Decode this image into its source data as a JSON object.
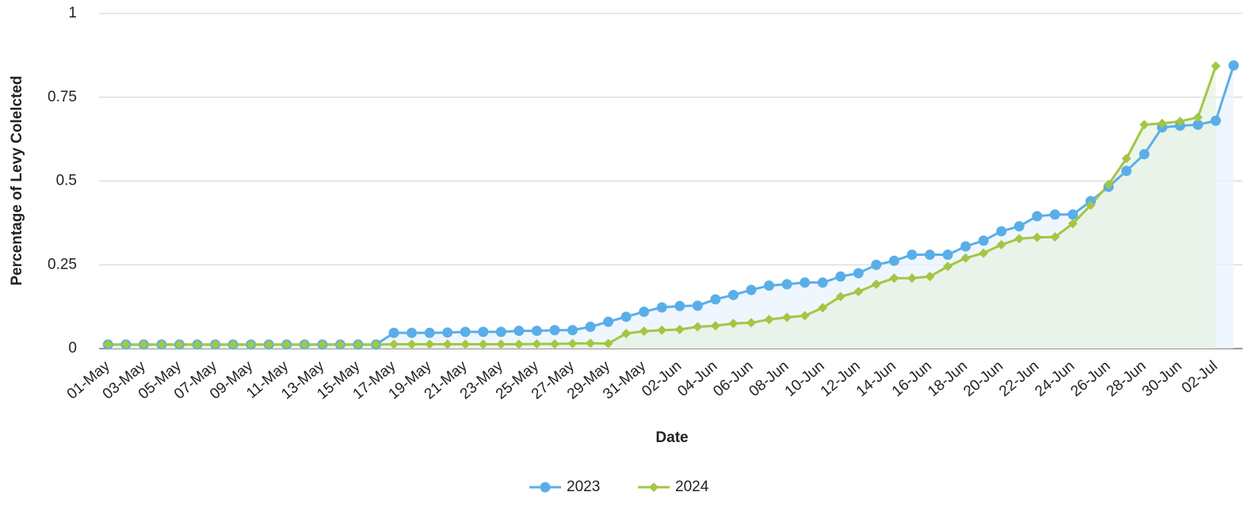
{
  "chart_data": {
    "type": "line",
    "y_label": "Percentage of Levy Colelcted",
    "x_label": "Date",
    "categories": [
      "01-May",
      null,
      "03-May",
      null,
      "05-May",
      null,
      "07-May",
      null,
      "09-May",
      null,
      "11-May",
      null,
      "13-May",
      null,
      "15-May",
      null,
      "17-May",
      null,
      "19-May",
      null,
      "21-May",
      null,
      "23-May",
      null,
      "25-May",
      null,
      "27-May",
      null,
      "29-May",
      null,
      "31-May",
      null,
      "02-Jun",
      null,
      "04-Jun",
      null,
      "06-Jun",
      null,
      "08-Jun",
      null,
      "10-Jun",
      null,
      "12-Jun",
      null,
      "14-Jun",
      null,
      "16-Jun",
      null,
      "18-Jun",
      null,
      "20-Jun",
      null,
      "22-Jun",
      null,
      "24-Jun",
      null,
      "26-Jun",
      null,
      "28-Jun",
      null,
      "30-Jun",
      null,
      "02-Jul",
      null
    ],
    "series": [
      {
        "name": "2023",
        "color": "#5aaee8",
        "fill": "#eaf3fc",
        "marker": "circle",
        "values": [
          0.012,
          0.012,
          0.012,
          0.012,
          0.012,
          0.012,
          0.012,
          0.012,
          0.012,
          0.012,
          0.012,
          0.012,
          0.012,
          0.012,
          0.012,
          0.012,
          0.047,
          0.047,
          0.047,
          0.048,
          0.05,
          0.05,
          0.05,
          0.053,
          0.053,
          0.055,
          0.055,
          0.065,
          0.08,
          0.095,
          0.11,
          0.123,
          0.127,
          0.128,
          0.147,
          0.16,
          0.175,
          0.188,
          0.192,
          0.197,
          0.197,
          0.215,
          0.225,
          0.25,
          0.262,
          0.28,
          0.28,
          0.28,
          0.305,
          0.322,
          0.35,
          0.365,
          0.395,
          0.4,
          0.4,
          0.44,
          0.483,
          0.53,
          0.58,
          0.66,
          0.665,
          0.668,
          0.68,
          0.845
        ]
      },
      {
        "name": "2024",
        "color": "#a3c644",
        "fill": "#e8f1e2",
        "marker": "diamond",
        "values": [
          0.012,
          0.012,
          0.012,
          0.012,
          0.012,
          0.012,
          0.012,
          0.012,
          0.012,
          0.012,
          0.012,
          0.012,
          0.012,
          0.012,
          0.012,
          0.012,
          0.013,
          0.013,
          0.013,
          0.013,
          0.013,
          0.013,
          0.013,
          0.013,
          0.014,
          0.014,
          0.015,
          0.016,
          0.015,
          0.045,
          0.052,
          0.055,
          0.057,
          0.065,
          0.068,
          0.075,
          0.077,
          0.087,
          0.093,
          0.098,
          0.122,
          0.155,
          0.17,
          0.192,
          0.21,
          0.21,
          0.215,
          0.245,
          0.27,
          0.285,
          0.31,
          0.328,
          0.332,
          0.333,
          0.373,
          0.428,
          0.49,
          0.567,
          0.668,
          0.672,
          0.678,
          0.69,
          0.843,
          null
        ]
      }
    ],
    "ylim": [
      0,
      1
    ],
    "yticks": [
      0,
      0.25,
      0.5,
      0.75,
      1
    ],
    "grid": true
  }
}
